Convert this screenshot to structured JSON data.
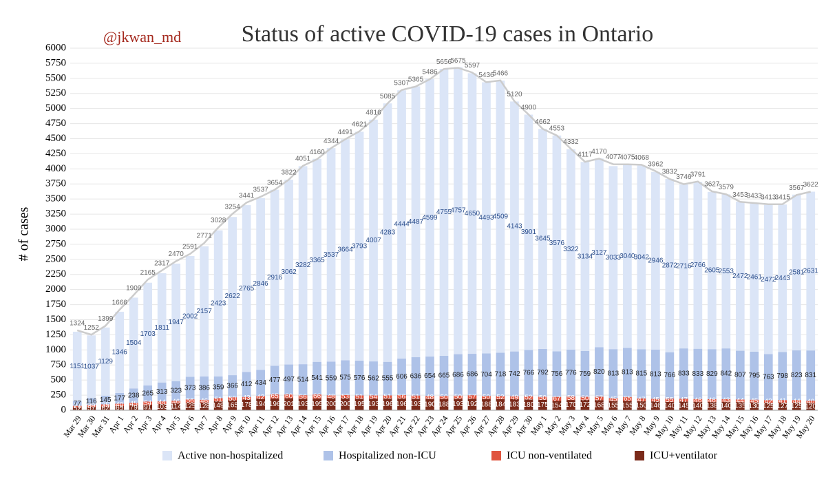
{
  "handle": "@jkwan_md",
  "chart_data": {
    "type": "stacked-bar",
    "title": "Status of active COVID-19 cases in Ontario",
    "ylabel": "# of cases",
    "categories": [
      "Mar 29",
      "Mar 30",
      "Mar 31",
      "Apr 1",
      "Apr 2",
      "Apr 3",
      "Apr 4",
      "Apr 5",
      "Apr 6",
      "Apr 7",
      "Apr 8",
      "Apr 9",
      "Apr 10",
      "Apr 11",
      "Apr 12",
      "Apr 13",
      "Apr 14",
      "Apr 15",
      "Apr 16",
      "Apr 17",
      "Apr 18",
      "Apr 19",
      "Apr 20",
      "Apr 21",
      "Apr 22",
      "Apr 23",
      "Apr 24",
      "Apr 25",
      "Apr 26",
      "Apr 27",
      "Apr 28",
      "Apr 29",
      "Apr 30",
      "May 1",
      "May 2",
      "May 3",
      "May 4",
      "May 5",
      "May 6",
      "May 7",
      "May 8",
      "May 9",
      "May 10",
      "May 11",
      "May 12",
      "May 13",
      "May 14",
      "May 15",
      "May 16",
      "May 17",
      "May 18",
      "May 19",
      "May 20"
    ],
    "series": [
      {
        "name": "Active non-hospitalized",
        "color": "#dbe5f7",
        "label_color": "#2b4e8c",
        "values": [
          1151,
          1037,
          1129,
          1346,
          1504,
          1703,
          1811,
          1947,
          2002,
          2157,
          2423,
          2622,
          2765,
          2846,
          2916,
          3062,
          3282,
          3365,
          3537,
          3664,
          3793,
          4007,
          4283,
          4444,
          4487,
          4599,
          4755,
          4757,
          4650,
          4493,
          4509,
          4143,
          3901,
          3645,
          3576,
          3322,
          3134,
          3127,
          3033,
          3040,
          3042,
          2946,
          2872,
          2716,
          2766,
          2605,
          2553,
          2472,
          2461,
          2472,
          2443,
          2581,
          2631
        ]
      },
      {
        "name": "Hospitalized non-ICU",
        "color": "#aec2e8",
        "label_color": "#222222",
        "values": [
          77,
          116,
          145,
          177,
          238,
          265,
          313,
          323,
          373,
          386,
          359,
          366,
          412,
          434,
          477,
          497,
          514,
          541,
          559,
          575,
          576,
          562,
          555,
          606,
          636,
          654,
          665,
          686,
          686,
          704,
          718,
          742,
          766,
          792,
          756,
          776,
          759,
          820,
          813,
          813,
          815,
          813,
          766,
          833,
          833,
          829,
          842,
          807,
          795,
          763,
          798,
          823,
          831
        ]
      },
      {
        "name": "ICU non-ventilated",
        "color": "#e0543f",
        "label_color": "#ffffff",
        "values": [
          21,
          30,
          35,
          40,
          45,
          54,
          44,
          46,
          56,
          46,
          51,
          50,
          43,
          42,
          65,
          60,
          56,
          66,
          48,
          53,
          51,
          54,
          51,
          56,
          51,
          48,
          50,
          50,
          57,
          50,
          52,
          49,
          52,
          50,
          67,
          58,
          50,
          57,
          45,
          65,
          47,
          45,
          55,
          47,
          46,
          46,
          43,
          44,
          45,
          42,
          41,
          44,
          40
        ]
      },
      {
        "name": "ICU+ventilator",
        "color": "#7a2a1a",
        "label_color": "#ffffff",
        "values": [
          52,
          57,
          62,
          69,
          79,
          91,
          103,
          114,
          125,
          128,
          149,
          165,
          178,
          194,
          196,
          201,
          193,
          195,
          200,
          200,
          195,
          193,
          196,
          196,
          193,
          190,
          188,
          193,
          192,
          188,
          184,
          183,
          180,
          175,
          154,
          170,
          172,
          168,
          155,
          155,
          150,
          146,
          140,
          145,
          140,
          138,
          140,
          135,
          130,
          125,
          127,
          125,
          120
        ]
      }
    ],
    "totals": {
      "color": "#cccccc",
      "label_color": "#666666",
      "values": [
        1324,
        1252,
        1399,
        1666,
        1909,
        2165,
        2317,
        2470,
        2591,
        2771,
        3028,
        3254,
        3441,
        3537,
        3654,
        3822,
        4051,
        4160,
        4344,
        4491,
        4621,
        4816,
        5085,
        5307,
        5365,
        5486,
        5656,
        5675,
        5597,
        5436,
        5466,
        5120,
        4900,
        4662,
        4553,
        4332,
        4117,
        4170,
        4077,
        4075,
        4068,
        3962,
        3832,
        3746,
        3791,
        3627,
        3579,
        3453,
        3433,
        3413,
        3415,
        3567,
        3622
      ]
    },
    "ylim": [
      0,
      6000
    ],
    "yticks": [
      0,
      250,
      500,
      750,
      1000,
      1250,
      1500,
      1750,
      2000,
      2250,
      2500,
      2750,
      3000,
      3250,
      3500,
      3750,
      4000,
      4250,
      4500,
      4750,
      5000,
      5250,
      5500,
      5750,
      6000
    ],
    "grid": true
  }
}
